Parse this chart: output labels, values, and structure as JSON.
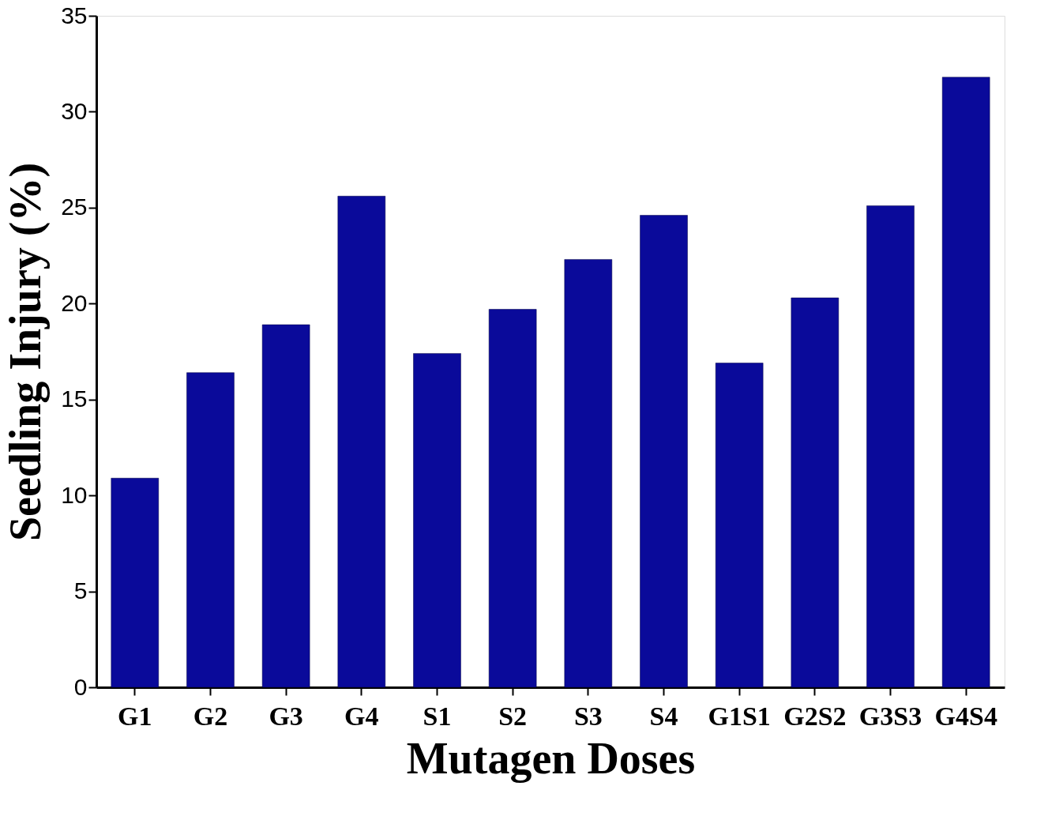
{
  "chart_data": {
    "type": "bar",
    "xlabel": "Mutagen Doses",
    "ylabel": "Seedling Injury (%)",
    "categories": [
      "G1",
      "G2",
      "G3",
      "G4",
      "S1",
      "S2",
      "S3",
      "S4",
      "G1S1",
      "G2S2",
      "G3S3",
      "G4S4"
    ],
    "values": [
      10.9,
      16.4,
      18.9,
      25.6,
      17.4,
      19.7,
      22.3,
      24.6,
      16.9,
      20.3,
      25.1,
      31.8
    ],
    "color": "#0a0a9a",
    "ylim": [
      0,
      35
    ],
    "yticks": [
      0,
      5,
      10,
      15,
      20,
      25,
      30,
      35
    ],
    "grid": false
  }
}
